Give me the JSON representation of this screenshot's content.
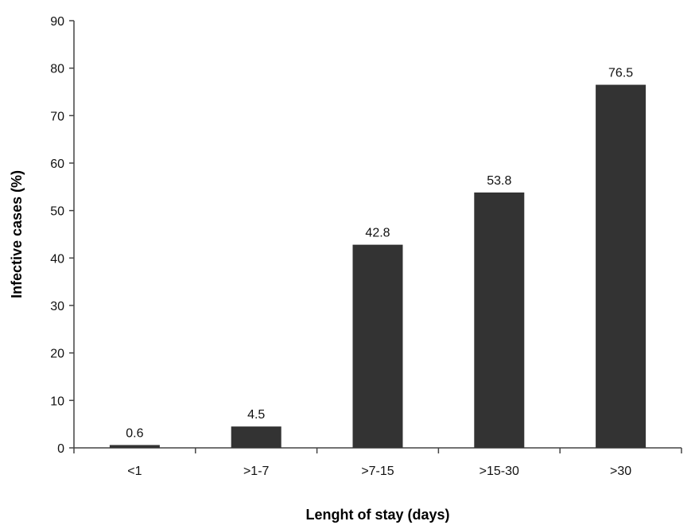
{
  "chart_data": {
    "type": "bar",
    "title": "",
    "xlabel": "Lenght of stay (days)",
    "ylabel": "Infective cases (%)",
    "categories": [
      "<1",
      ">1-7",
      ">7-15",
      ">15-30",
      ">30"
    ],
    "values": [
      0.6,
      4.5,
      42.8,
      53.8,
      76.5
    ],
    "data_labels": [
      "0.6",
      "4.5",
      "42.8",
      "53.8",
      "76.5"
    ],
    "ylim": [
      0,
      90
    ],
    "yticks": [
      0,
      10,
      20,
      30,
      40,
      50,
      60,
      70,
      80,
      90
    ],
    "grid": false,
    "legend": "none",
    "bar_color": "#333333",
    "axis_color": "#444444"
  }
}
